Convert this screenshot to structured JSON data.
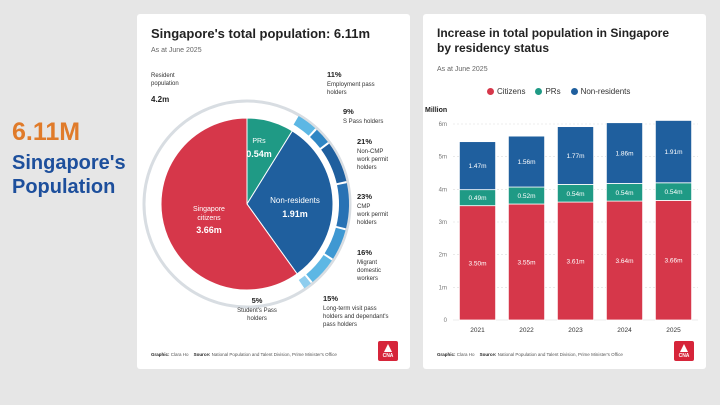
{
  "headline": {
    "number": "6.11M",
    "line1": "Singapore's",
    "line2": "Population"
  },
  "left_card": {
    "title": "Singapore's total population: 6.11m",
    "subtitle": "As at June 2025",
    "resident_label": "Resident\npopulation",
    "resident_value": "4.2m",
    "footer_graphic_label": "Graphic:",
    "footer_graphic": "Clara Ho",
    "footer_source_label": "Source:",
    "footer_source": "National Population and Talent Division, Prime Minister's Office"
  },
  "right_card": {
    "title_line1": "Increase in total population in Singapore",
    "title_line2": "by residency status",
    "subtitle": "As at June 2025",
    "footer_graphic_label": "Graphic:",
    "footer_graphic": "Clara Ho",
    "footer_source_label": "Source:",
    "footer_source": "National Population and Talent Division, Prime Minister's Office"
  },
  "logo_text": "CNA",
  "colors": {
    "citizens": "#d6374a",
    "prs": "#1f9a85",
    "nonres": "#1f5f9e",
    "ring": "#5ab3e0",
    "orange": "#e07b2a",
    "blue": "#1d4f9c"
  },
  "chart_data": [
    {
      "type": "pie",
      "title": "Singapore's total population: 6.11m",
      "slices": [
        {
          "name": "Singapore citizens",
          "value": 3.66,
          "label": "3.66m"
        },
        {
          "name": "PRs",
          "value": 0.54,
          "label": "0.54m"
        },
        {
          "name": "Non-residents",
          "value": 1.91,
          "label": "1.91m"
        }
      ],
      "ring": [
        {
          "pct": "11%",
          "name": "Employment pass holders",
          "lines": [
            "Employment pass",
            "holders"
          ]
        },
        {
          "pct": "9%",
          "name": "S Pass holders",
          "lines": [
            "S Pass holders"
          ]
        },
        {
          "pct": "21%",
          "name": "Non-CMP work permit holders",
          "lines": [
            "Non-CMP",
            "work permit",
            "holders"
          ]
        },
        {
          "pct": "23%",
          "name": "CMP work permit holders",
          "lines": [
            "CMP",
            "work permit",
            "holders"
          ]
        },
        {
          "pct": "16%",
          "name": "Migrant domestic workers",
          "lines": [
            "Migrant",
            "domestic",
            "workers"
          ]
        },
        {
          "pct": "15%",
          "name": "Long-term visit pass holders and dependant's pass holders",
          "lines": [
            "Long-term visit pass",
            "holders and dependant's",
            "pass holders"
          ]
        },
        {
          "pct": "5%",
          "name": "Student's Pass holders",
          "lines": [
            "Student's Pass",
            "holders"
          ]
        }
      ]
    },
    {
      "type": "bar",
      "title": "Increase in total population in Singapore by residency status",
      "ylabel": "Million",
      "ylim": [
        0,
        6
      ],
      "yticks": [
        "0",
        "1m",
        "2m",
        "3m",
        "4m",
        "5m",
        "6m"
      ],
      "categories": [
        "2021",
        "2022",
        "2023",
        "2024",
        "2025"
      ],
      "series": [
        {
          "name": "Citizens",
          "values": [
            3.5,
            3.55,
            3.61,
            3.64,
            3.66
          ],
          "labels": [
            "3.50m",
            "3.55m",
            "3.61m",
            "3.64m",
            "3.66m"
          ]
        },
        {
          "name": "PRs",
          "values": [
            0.49,
            0.52,
            0.54,
            0.54,
            0.54
          ],
          "labels": [
            "0.49m",
            "0.52m",
            "0.54m",
            "0.54m",
            "0.54m"
          ]
        },
        {
          "name": "Non-residents",
          "values": [
            1.47,
            1.56,
            1.77,
            1.86,
            1.91
          ],
          "labels": [
            "1.47m",
            "1.56m",
            "1.77m",
            "1.86m",
            "1.91m"
          ]
        }
      ]
    }
  ]
}
